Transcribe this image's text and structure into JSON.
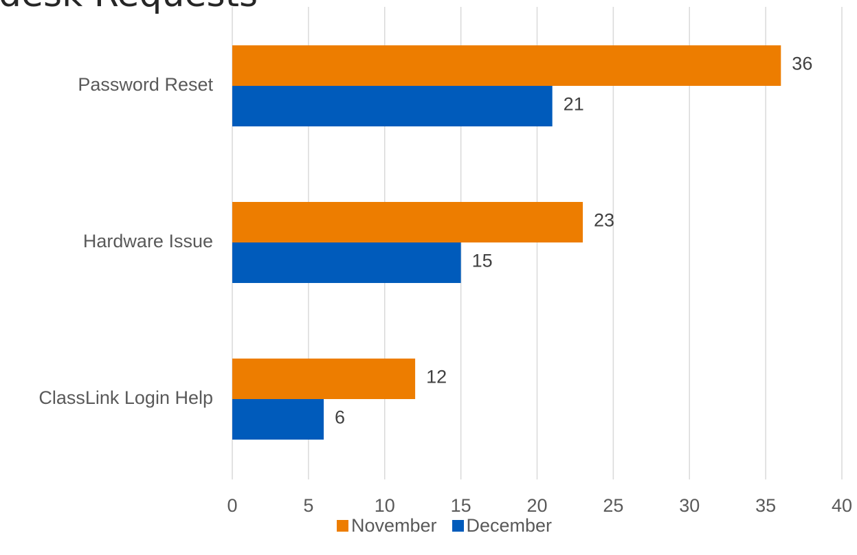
{
  "chart_data": {
    "type": "bar",
    "orientation": "horizontal",
    "title": "desk Requests",
    "categories": [
      "Password Reset",
      "Hardware Issue",
      "ClassLink Login Help"
    ],
    "series": [
      {
        "name": "November",
        "values": [
          36,
          23,
          12
        ],
        "color": "#ED7D00"
      },
      {
        "name": "December",
        "values": [
          21,
          15,
          6
        ],
        "color": "#005BBB"
      }
    ],
    "xlim": [
      0,
      40
    ],
    "xticks": [
      0,
      5,
      10,
      15,
      20,
      25,
      30,
      35,
      40
    ],
    "xtick_labels": [
      "0",
      "5",
      "10",
      "15",
      "20",
      "25",
      "30",
      "35",
      "40"
    ],
    "grid": true,
    "legend_position": "bottom",
    "data_labels": true
  }
}
